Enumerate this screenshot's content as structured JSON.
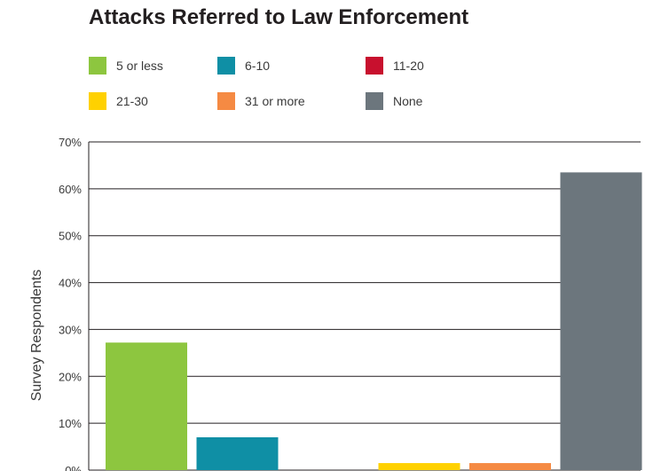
{
  "chart_data": {
    "type": "bar",
    "title": "Attacks Referred to Law Enforcement",
    "ylabel": "Survey Respondents",
    "xlabel": "",
    "ylim": [
      0,
      70
    ],
    "yticks": [
      "0%",
      "10%",
      "20%",
      "30%",
      "40%",
      "50%",
      "60%",
      "70%"
    ],
    "grid": true,
    "legend_position": "top",
    "categories": [
      "5 or less",
      "6-10",
      "11-20",
      "21-30",
      "31 or more",
      "None"
    ],
    "values": [
      27.2,
      7.0,
      0,
      1.5,
      1.5,
      63.5
    ],
    "colors": [
      "#8dc63f",
      "#0f8fa5",
      "#c8102e",
      "#ffd100",
      "#f58a43",
      "#6c767d"
    ]
  }
}
